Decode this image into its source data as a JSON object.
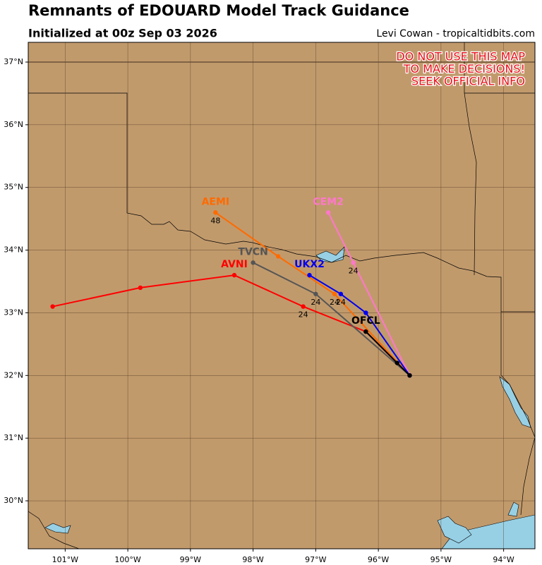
{
  "chart_data": {
    "type": "track-map",
    "title": "Remnants of EDOUARD Model Track Guidance",
    "subtitle": "Initialized at 00z Sep 03 2026",
    "credit": "Levi Cowan - tropicaltidbits.com",
    "annotation": [
      "DO NOT USE THIS MAP",
      "TO MAKE DECISIONS!",
      "SEEK OFFICIAL INFO"
    ],
    "annotation_color": "#e8101a",
    "grid": true,
    "xlim": [
      -101.59,
      -93.5
    ],
    "ylim": [
      29.235,
      37.315
    ],
    "xticks": [
      {
        "value": -101,
        "label": "101°W"
      },
      {
        "value": -100,
        "label": "100°W"
      },
      {
        "value": -99,
        "label": "99°W"
      },
      {
        "value": -98,
        "label": "98°W"
      },
      {
        "value": -97,
        "label": "97°W"
      },
      {
        "value": -96,
        "label": "96°W"
      },
      {
        "value": -95,
        "label": "95°W"
      },
      {
        "value": -94,
        "label": "94°W"
      }
    ],
    "yticks": [
      {
        "value": 30,
        "label": "30°N"
      },
      {
        "value": 31,
        "label": "31°N"
      },
      {
        "value": 32,
        "label": "32°N"
      },
      {
        "value": 33,
        "label": "33°N"
      },
      {
        "value": 34,
        "label": "34°N"
      },
      {
        "value": 35,
        "label": "35°N"
      },
      {
        "value": 36,
        "label": "36°N"
      },
      {
        "value": 37,
        "label": "37°N"
      }
    ],
    "series": [
      {
        "name": "AVNI",
        "color": "#ff0000",
        "x": [
          -95.5,
          -96.2,
          -97.2,
          -98.3,
          -99.8,
          -101.2
        ],
        "y": [
          32.0,
          32.7,
          33.1,
          33.6,
          33.4,
          33.1
        ],
        "point_labels": [
          null,
          null,
          "24",
          null,
          null,
          null
        ]
      },
      {
        "name": "AEMI",
        "color": "#ff6a00",
        "x": [
          -95.5,
          -96.7,
          -97.6,
          -98.6
        ],
        "y": [
          32.0,
          33.3,
          33.9,
          34.6
        ],
        "point_labels": [
          null,
          "24",
          null,
          "48"
        ]
      },
      {
        "name": "TVCN",
        "color": "#555555",
        "x": [
          -95.5,
          -97.0,
          -98.0
        ],
        "y": [
          32.0,
          33.3,
          33.8
        ],
        "point_labels": [
          null,
          "24",
          null
        ]
      },
      {
        "name": "CEM2",
        "color": "#ff77cc",
        "x": [
          -95.5,
          -96.4,
          -96.8
        ],
        "y": [
          32.0,
          33.8,
          34.6
        ],
        "point_labels": [
          null,
          "24",
          null
        ]
      },
      {
        "name": "UKX2",
        "color": "#0000ee",
        "x": [
          -95.5,
          -96.2,
          -96.6,
          -97.1
        ],
        "y": [
          32.0,
          33.0,
          33.3,
          33.6
        ],
        "point_labels": [
          null,
          null,
          "24",
          null
        ]
      },
      {
        "name": "OFCL",
        "color": "#000000",
        "x": [
          -95.5,
          -95.7,
          -96.2
        ],
        "y": [
          32.0,
          32.2,
          32.7
        ],
        "point_labels": [
          null,
          null,
          null
        ]
      }
    ]
  }
}
